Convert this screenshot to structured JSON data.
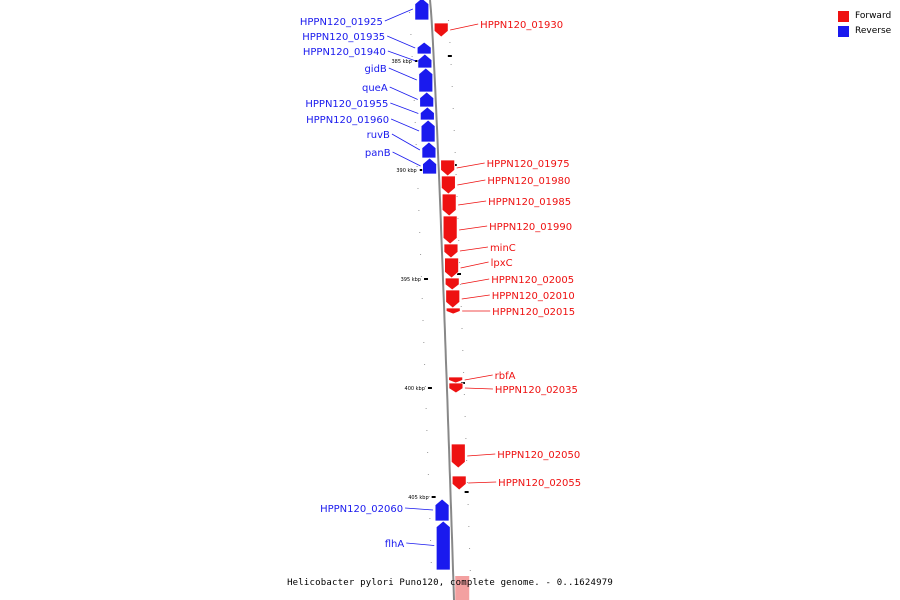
{
  "colors": {
    "forward": "#ee1111",
    "reverse": "#1a1aee",
    "backbone": "#888888"
  },
  "legend": {
    "forward_label": "Forward",
    "reverse_label": "Reverse"
  },
  "caption": "Helicobacter pylori Puno120, complete genome. - 0..1624979",
  "ticks": [
    "385 kbp",
    "390 kbp",
    "395 kbp",
    "400 kbp",
    "405 kbp"
  ],
  "genes": [
    {
      "name": "HPPN120_01925",
      "strand": "reverse"
    },
    {
      "name": "HPPN120_01930",
      "strand": "forward"
    },
    {
      "name": "HPPN120_01935",
      "strand": "reverse"
    },
    {
      "name": "HPPN120_01940",
      "strand": "reverse"
    },
    {
      "name": "gidB",
      "strand": "reverse"
    },
    {
      "name": "queA",
      "strand": "reverse"
    },
    {
      "name": "HPPN120_01955",
      "strand": "reverse"
    },
    {
      "name": "HPPN120_01960",
      "strand": "reverse"
    },
    {
      "name": "ruvB",
      "strand": "reverse"
    },
    {
      "name": "panB",
      "strand": "reverse"
    },
    {
      "name": "HPPN120_01975",
      "strand": "forward"
    },
    {
      "name": "HPPN120_01980",
      "strand": "forward"
    },
    {
      "name": "HPPN120_01985",
      "strand": "forward"
    },
    {
      "name": "HPPN120_01990",
      "strand": "forward"
    },
    {
      "name": "minC",
      "strand": "forward"
    },
    {
      "name": "lpxC",
      "strand": "forward"
    },
    {
      "name": "HPPN120_02005",
      "strand": "forward"
    },
    {
      "name": "HPPN120_02010",
      "strand": "forward"
    },
    {
      "name": "HPPN120_02015",
      "strand": "forward"
    },
    {
      "name": "rbfA",
      "strand": "forward"
    },
    {
      "name": "HPPN120_02035",
      "strand": "forward"
    },
    {
      "name": "HPPN120_02050",
      "strand": "forward"
    },
    {
      "name": "HPPN120_02055",
      "strand": "forward"
    },
    {
      "name": "HPPN120_02060",
      "strand": "reverse"
    },
    {
      "name": "flhA",
      "strand": "reverse"
    }
  ]
}
